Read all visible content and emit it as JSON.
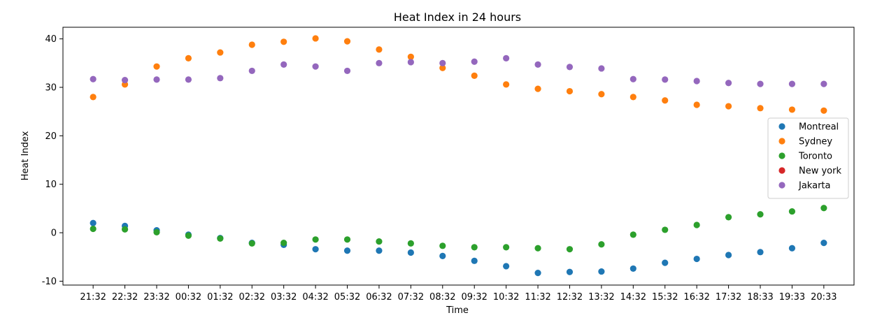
{
  "chart_data": {
    "type": "scatter",
    "title": "Heat Index in 24 hours",
    "xlabel": "Time",
    "ylabel": "Heat Index",
    "categories": [
      "21:32",
      "22:32",
      "23:32",
      "00:32",
      "01:32",
      "02:32",
      "03:32",
      "04:32",
      "05:32",
      "06:32",
      "07:32",
      "08:32",
      "09:32",
      "10:32",
      "11:32",
      "12:32",
      "13:32",
      "14:32",
      "15:32",
      "16:32",
      "17:32",
      "18:33",
      "19:33",
      "20:33"
    ],
    "ylim": [
      -10.8,
      42.4
    ],
    "yticks": [
      -10,
      0,
      10,
      20,
      30,
      40
    ],
    "grid": false,
    "legend_position": "center-right",
    "series": [
      {
        "name": "Montreal",
        "color": "#1f77b4",
        "values": [
          2.0,
          1.4,
          0.5,
          -0.4,
          -1.1,
          -2.1,
          -2.5,
          -3.4,
          -3.7,
          -3.7,
          -4.1,
          -4.8,
          -5.8,
          -6.9,
          -8.3,
          -8.1,
          -8.0,
          -7.4,
          -6.2,
          -5.4,
          -4.6,
          -4.0,
          -3.2,
          -2.1
        ]
      },
      {
        "name": "Sydney",
        "color": "#ff7f0e",
        "values": [
          28.0,
          30.6,
          34.3,
          36.0,
          37.2,
          38.8,
          39.4,
          40.1,
          39.5,
          37.8,
          36.3,
          34.0,
          32.4,
          30.6,
          29.7,
          29.2,
          28.6,
          28.0,
          27.3,
          26.4,
          26.1,
          25.7,
          25.4,
          25.2
        ]
      },
      {
        "name": "Toronto",
        "color": "#2ca02c",
        "values": [
          0.8,
          0.7,
          0.1,
          -0.6,
          -1.2,
          -2.2,
          -2.1,
          -1.4,
          -1.4,
          -1.8,
          -2.2,
          -2.7,
          -3.0,
          -3.0,
          -3.2,
          -3.4,
          -2.4,
          -0.4,
          0.6,
          1.6,
          3.2,
          3.8,
          4.4,
          5.1
        ]
      },
      {
        "name": "New york",
        "color": "#d62728",
        "values": []
      },
      {
        "name": "Jakarta",
        "color": "#9467bd",
        "values": [
          31.7,
          31.5,
          31.6,
          31.6,
          31.9,
          33.4,
          34.7,
          34.3,
          33.4,
          35.0,
          35.2,
          35.0,
          35.3,
          36.0,
          34.7,
          34.2,
          33.9,
          31.7,
          31.6,
          31.3,
          30.9,
          30.7,
          30.7,
          30.7
        ]
      }
    ]
  }
}
